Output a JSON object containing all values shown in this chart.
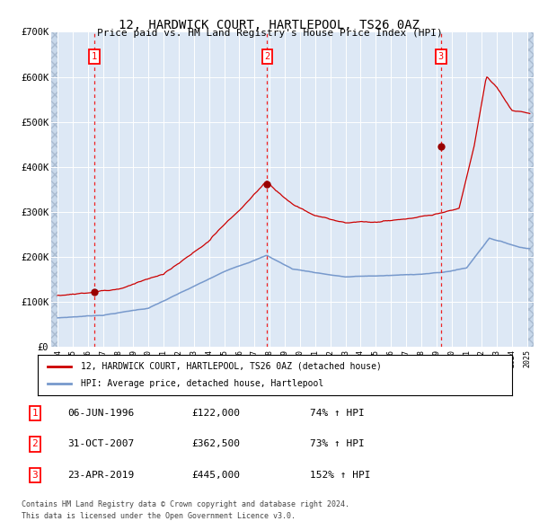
{
  "title": "12, HARDWICK COURT, HARTLEPOOL, TS26 0AZ",
  "subtitle": "Price paid vs. HM Land Registry's House Price Index (HPI)",
  "sale_labels_info": [
    {
      "label": "1",
      "date": "06-JUN-1996",
      "price": "£122,000",
      "hpi": "74% ↑ HPI"
    },
    {
      "label": "2",
      "date": "31-OCT-2007",
      "price": "£362,500",
      "hpi": "73% ↑ HPI"
    },
    {
      "label": "3",
      "date": "23-APR-2019",
      "price": "£445,000",
      "hpi": "152% ↑ HPI"
    }
  ],
  "legend_line1": "12, HARDWICK COURT, HARTLEPOOL, TS26 0AZ (detached house)",
  "legend_line2": "HPI: Average price, detached house, Hartlepool",
  "footer1": "Contains HM Land Registry data © Crown copyright and database right 2024.",
  "footer2": "This data is licensed under the Open Government Licence v3.0.",
  "hpi_color": "#7799cc",
  "price_color": "#cc0000",
  "dashed_line_color": "#ee2222",
  "plot_bg_color": "#dde8f5",
  "ylim": [
    0,
    700000
  ],
  "yticks": [
    0,
    100000,
    200000,
    300000,
    400000,
    500000,
    600000,
    700000
  ],
  "ytick_labels": [
    "£0",
    "£100K",
    "£200K",
    "£300K",
    "£400K",
    "£500K",
    "£600K",
    "£700K"
  ],
  "xlim_start": 1993.58,
  "xlim_end": 2025.42,
  "sale_years": [
    1996.42,
    2007.83,
    2019.31
  ],
  "sale_prices": [
    122000,
    362500,
    445000
  ]
}
